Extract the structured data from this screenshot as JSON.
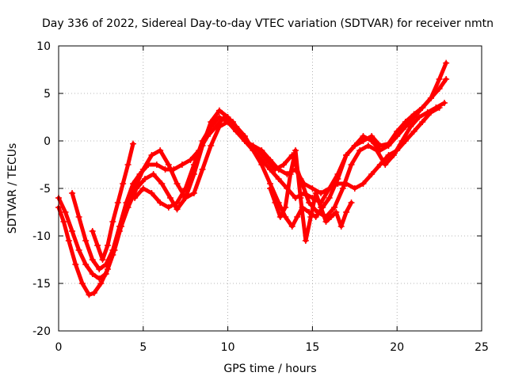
{
  "chart_data": {
    "type": "scatter",
    "title": "Day 336 of 2022, Sidereal Day-to-day VTEC variation (SDTVAR) for receiver nmtn",
    "xlabel": "GPS time / hours",
    "ylabel": "SDTVAR / TECUs",
    "xlim": [
      0,
      25
    ],
    "ylim": [
      -20,
      10
    ],
    "xticks": [
      0,
      5,
      10,
      15,
      20,
      25
    ],
    "yticks": [
      -20,
      -15,
      -10,
      -5,
      0,
      5,
      10
    ],
    "grid": true,
    "marker": "+",
    "color": "#ff0000",
    "series": [
      {
        "x": [
          0,
          0.3,
          0.6,
          1.0,
          1.4,
          1.8,
          2.1,
          2.5,
          2.9,
          3.3,
          3.7,
          4.1,
          4.6,
          5.1,
          5.6,
          6.1,
          6.6,
          7.0,
          7.5,
          8.0,
          8.5,
          9.0,
          9.5,
          10.0,
          10.5,
          11.0,
          11.5,
          12.0,
          12.5,
          13.0,
          13.4,
          13.8,
          14.1,
          14.4,
          14.8,
          15.2,
          15.6,
          16.0,
          16.5,
          17.0,
          17.5,
          18.0,
          18.5,
          19.0,
          19.5,
          20.0,
          20.5,
          21.0,
          21.5,
          22.0,
          22.5,
          22.9
        ],
        "y": [
          -7.0,
          -8.5,
          -10.5,
          -13.0,
          -15.0,
          -16.2,
          -16.0,
          -15.0,
          -13.5,
          -11.5,
          -9.0,
          -7.0,
          -5.0,
          -4.0,
          -3.5,
          -4.5,
          -6.0,
          -7.2,
          -6.0,
          -3.5,
          -0.5,
          2.0,
          3.2,
          2.5,
          1.5,
          0.5,
          -1.0,
          -2.5,
          -4.5,
          -6.5,
          -8.0,
          -9.0,
          -8.0,
          -7.0,
          -7.5,
          -8.0,
          -7.0,
          -6.0,
          -4.0,
          -1.5,
          -0.5,
          0.0,
          0.5,
          -0.5,
          -0.3,
          1.0,
          2.0,
          2.8,
          3.5,
          4.5,
          6.5,
          8.2
        ]
      },
      {
        "x": [
          0,
          0.4,
          0.8,
          1.2,
          1.6,
          2.0,
          2.4,
          2.8,
          3.2,
          3.6,
          4.0,
          4.5,
          5.0,
          5.5,
          6.0,
          6.5,
          7.0,
          7.5,
          8.0,
          8.5,
          9.0,
          9.5,
          10.0,
          10.5,
          11.0,
          11.5,
          12.0,
          12.5,
          13.0,
          13.5,
          14.0,
          14.5,
          15.0,
          15.5,
          16.0,
          16.5,
          17.0,
          17.5,
          18.0,
          18.5,
          19.0,
          19.5,
          20.0,
          20.5,
          21.0,
          21.5,
          22.0,
          22.5,
          22.9
        ],
        "y": [
          -6.0,
          -7.5,
          -9.5,
          -11.5,
          -13.0,
          -14.0,
          -14.5,
          -14.0,
          -12.0,
          -9.5,
          -7.0,
          -5.0,
          -3.0,
          -1.5,
          -1.0,
          -2.5,
          -4.5,
          -6.0,
          -5.5,
          -3.0,
          -0.5,
          1.5,
          2.0,
          1.0,
          0.0,
          -1.0,
          -2.0,
          -3.0,
          -4.0,
          -5.0,
          -6.0,
          -5.5,
          -6.0,
          -6.5,
          -5.0,
          -3.5,
          -1.5,
          -0.5,
          0.5,
          0.0,
          -1.0,
          -0.5,
          0.5,
          1.5,
          2.5,
          3.5,
          4.5,
          5.5,
          6.5
        ]
      },
      {
        "x": [
          0.8,
          1.2,
          1.6,
          2.0,
          2.4,
          2.8,
          3.2,
          3.6,
          4.0,
          4.4,
          4.8,
          5.3,
          5.8,
          6.3,
          6.8,
          7.3,
          7.8,
          8.3,
          8.8,
          9.3,
          9.8,
          10.3,
          10.8,
          11.3,
          11.8,
          12.3,
          12.8,
          13.3,
          13.8,
          14.3,
          14.8,
          15.3,
          15.8,
          16.3,
          16.8,
          17.3,
          17.8,
          18.3,
          18.8,
          19.3,
          19.8,
          20.3,
          20.8,
          21.3,
          21.8,
          22.3,
          22.8
        ],
        "y": [
          -5.5,
          -8.0,
          -10.5,
          -12.5,
          -13.5,
          -13.0,
          -11.5,
          -9.0,
          -6.5,
          -4.5,
          -3.5,
          -2.5,
          -2.5,
          -3.0,
          -3.0,
          -2.5,
          -2.0,
          -1.0,
          0.5,
          1.5,
          2.5,
          2.0,
          0.5,
          -0.5,
          -1.0,
          -2.0,
          -3.0,
          -2.5,
          -1.5,
          -4.0,
          -6.5,
          -7.5,
          -8.0,
          -7.0,
          -5.0,
          -2.5,
          -1.0,
          -0.5,
          -1.0,
          -2.5,
          -1.5,
          0.0,
          1.5,
          2.5,
          3.0,
          3.5,
          4.0
        ]
      },
      {
        "x": [
          2.0,
          2.3,
          2.6,
          2.9,
          3.2,
          3.5,
          3.8,
          4.1,
          4.4
        ],
        "y": [
          -9.5,
          -11.0,
          -12.5,
          -11.0,
          -8.5,
          -6.5,
          -4.5,
          -2.5,
          -0.3
        ]
      },
      {
        "x": [
          4.5,
          5.0,
          5.5,
          6.0,
          6.5,
          7.0,
          7.5,
          8.0,
          8.5,
          9.0,
          9.5,
          10.0,
          10.5,
          11.0,
          11.5,
          12.0,
          12.5,
          13.0,
          13.5,
          14.0,
          14.5,
          15.0,
          15.5,
          16.0,
          16.5,
          17.0,
          17.5,
          18.0,
          18.5,
          19.0,
          19.5,
          20.0,
          20.5,
          21.0,
          21.5,
          22.0,
          22.5
        ],
        "y": [
          -6.0,
          -5.0,
          -5.5,
          -6.5,
          -7.0,
          -6.5,
          -5.0,
          -2.5,
          0.0,
          1.5,
          2.5,
          2.0,
          1.0,
          0.0,
          -0.5,
          -1.0,
          -2.0,
          -3.0,
          -3.5,
          -3.0,
          -4.5,
          -5.0,
          -5.5,
          -5.0,
          -4.5,
          -4.5,
          -5.0,
          -4.5,
          -3.5,
          -2.5,
          -1.5,
          -1.0,
          0.0,
          1.0,
          2.0,
          3.0,
          3.5
        ]
      },
      {
        "x": [
          12.5,
          12.8,
          13.1,
          13.4,
          13.7,
          14.0,
          14.3,
          14.6,
          14.9,
          15.2,
          15.5,
          15.8,
          16.1,
          16.4,
          16.7,
          17.0,
          17.3
        ],
        "y": [
          -5.0,
          -6.5,
          -8.0,
          -7.0,
          -3.5,
          -1.0,
          -6.0,
          -10.5,
          -8.0,
          -5.5,
          -7.0,
          -8.5,
          -8.0,
          -7.5,
          -9.0,
          -7.5,
          -6.5
        ]
      }
    ]
  }
}
